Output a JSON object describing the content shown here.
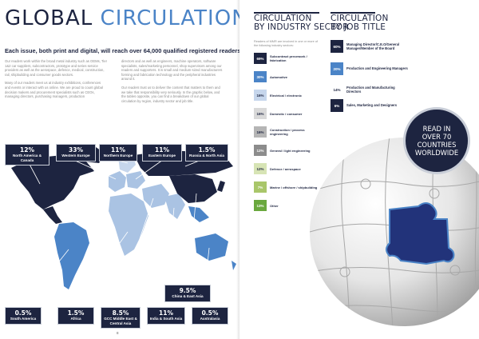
{
  "left": {
    "title_main": "GLOBAL ",
    "title_accent": "CIRCULATION",
    "subtitle": "Each issue, both print and digital, will reach over 64,000 qualified registered readers.",
    "body_col1": [
      "Our readers work within the broad metal industry such as OEMs, Tier 1&2 car suppliers, subcontractors, prototype and series service providers as well as the aerospace, defence, medical, construction, rail, shipbuilding and consumer goods sectors.",
      "Many of our readers meet us at industry exhibitions, conferences and events or interact with us online. We are proud to count global decision makers and procurement specialists such as CEOs, managing directors, purchasing managers, production"
    ],
    "body_col2": [
      "directors and as well as engineers, machine operators, software specialists, sales/marketing personnel, shop supervisors among our readers and supporters. It is small and medium-sized manufacturers forming and fabrication technology and the peripheral industries around it.",
      "Our readers trust us to deliver the content that matters to them and we take that responsibility very seriously. In the graphic below, and the tables opposite, you can find a breakdown of our global circulation by region, industry sector and job title."
    ],
    "regions": [
      {
        "pct": "12%",
        "name": "North America & Canada"
      },
      {
        "pct": "33%",
        "name": "Western Europe"
      },
      {
        "pct": "11%",
        "name": "Northern Europe"
      },
      {
        "pct": "11%",
        "name": "Eastern Europe"
      },
      {
        "pct": "1.5%",
        "name": "Russia & North Asia"
      },
      {
        "pct": "9.5%",
        "name": "China & East Asia"
      },
      {
        "pct": "0.5%",
        "name": "South America"
      },
      {
        "pct": "1.5%",
        "name": "Africa"
      },
      {
        "pct": "8.5%",
        "name": "GCC Middle East & Central Asia"
      },
      {
        "pct": "11%",
        "name": "India & South Asia"
      },
      {
        "pct": "0.5%",
        "name": "Australasia"
      }
    ],
    "page_number": "8"
  },
  "right": {
    "industry_title_1": "CIRCULATION",
    "industry_title_2": "BY INDUSTRY SECTOR",
    "job_title_1": "CIRCULATION",
    "job_title_2": "BY JOB TITLE",
    "intro": "Readers of MMR are involved in one or more of the following industry sectors:",
    "industries": [
      {
        "pct": "69%",
        "label": "Subcontract precework / fabrication",
        "color": "#1d2440",
        "text": "#ffffff"
      },
      {
        "pct": "30%",
        "label": "Automotive",
        "color": "#4b84c7",
        "text": "#ffffff"
      },
      {
        "pct": "16%",
        "label": "Electrical / electronic",
        "color": "#c6d6ec",
        "text": "#1d2440"
      },
      {
        "pct": "16%",
        "label": "Domestic / consumer",
        "color": "#d9d9d9",
        "text": "#1d2440"
      },
      {
        "pct": "16%",
        "label": "Construction / process engineering",
        "color": "#b5b5b5",
        "text": "#1d2440"
      },
      {
        "pct": "12%",
        "label": "General / light engineering",
        "color": "#8c8c8c",
        "text": "#ffffff"
      },
      {
        "pct": "12%",
        "label": "Defence / aerospace",
        "color": "#d7e4b5",
        "text": "#1d2440"
      },
      {
        "pct": "7%",
        "label": "Marine / offshore / shipbuilding",
        "color": "#a9c66a",
        "text": "#ffffff"
      },
      {
        "pct": "13%",
        "label": "Other",
        "color": "#6aa83e",
        "text": "#ffffff"
      }
    ],
    "jobs": [
      {
        "pct": "60%",
        "label": "Managing Director/C.E.O/General Manager/Member of the Board",
        "color": "#1d2440",
        "text": "#ffffff"
      },
      {
        "pct": "20%",
        "label": "Production and Engineering Managers",
        "color": "#4b84c7",
        "text": "#ffffff"
      },
      {
        "pct": "14%",
        "label": "Production and Manufacturing Directors",
        "color": "#ffffff",
        "text": "#1d2440"
      },
      {
        "pct": "6%",
        "label": "Sales, Marketing and Designers",
        "color": "#1d2440",
        "text": "#ffffff"
      }
    ],
    "badge": "READ IN OVER 70 COUNTRIES WORLDWIDE"
  },
  "colors": {
    "navy": "#1d2440",
    "accent": "#4b84c7",
    "light_blue": "#aac3e3",
    "pale": "#c6d6ec"
  }
}
